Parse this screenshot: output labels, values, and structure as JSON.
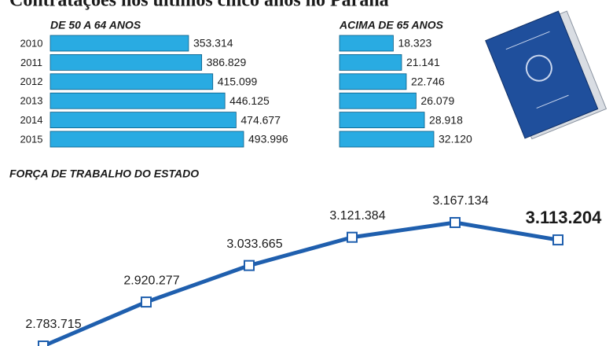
{
  "title": "Contratações nos últimos cinco anos no Paraná",
  "chart_data": [
    {
      "type": "bar",
      "title": "DE 50 A 64 ANOS",
      "categories": [
        "2010",
        "2011",
        "2012",
        "2013",
        "2014",
        "2015"
      ],
      "values": [
        353314,
        386829,
        415099,
        446125,
        474677,
        493996
      ],
      "value_labels": [
        "353.314",
        "386.829",
        "415.099",
        "446.125",
        "474.677",
        "493.996"
      ],
      "color": "#29abe2"
    },
    {
      "type": "bar",
      "title": "ACIMA DE 65 ANOS",
      "values": [
        18323,
        21141,
        22746,
        26079,
        28918,
        32120
      ],
      "value_labels": [
        "18.323",
        "21.141",
        "22.746",
        "26.079",
        "28.918",
        "32.120"
      ],
      "color": "#29abe2"
    },
    {
      "type": "line",
      "title": "FORÇA DE TRABALHO DO ESTADO",
      "values": [
        2783715,
        2920277,
        3033665,
        3121384,
        3167134,
        3113204
      ],
      "value_labels": [
        "2.783.715",
        "2.920.277",
        "3.033.665",
        "3.121.384",
        "3.167.134",
        "3.113.204"
      ],
      "color": "#1f5fae"
    }
  ]
}
